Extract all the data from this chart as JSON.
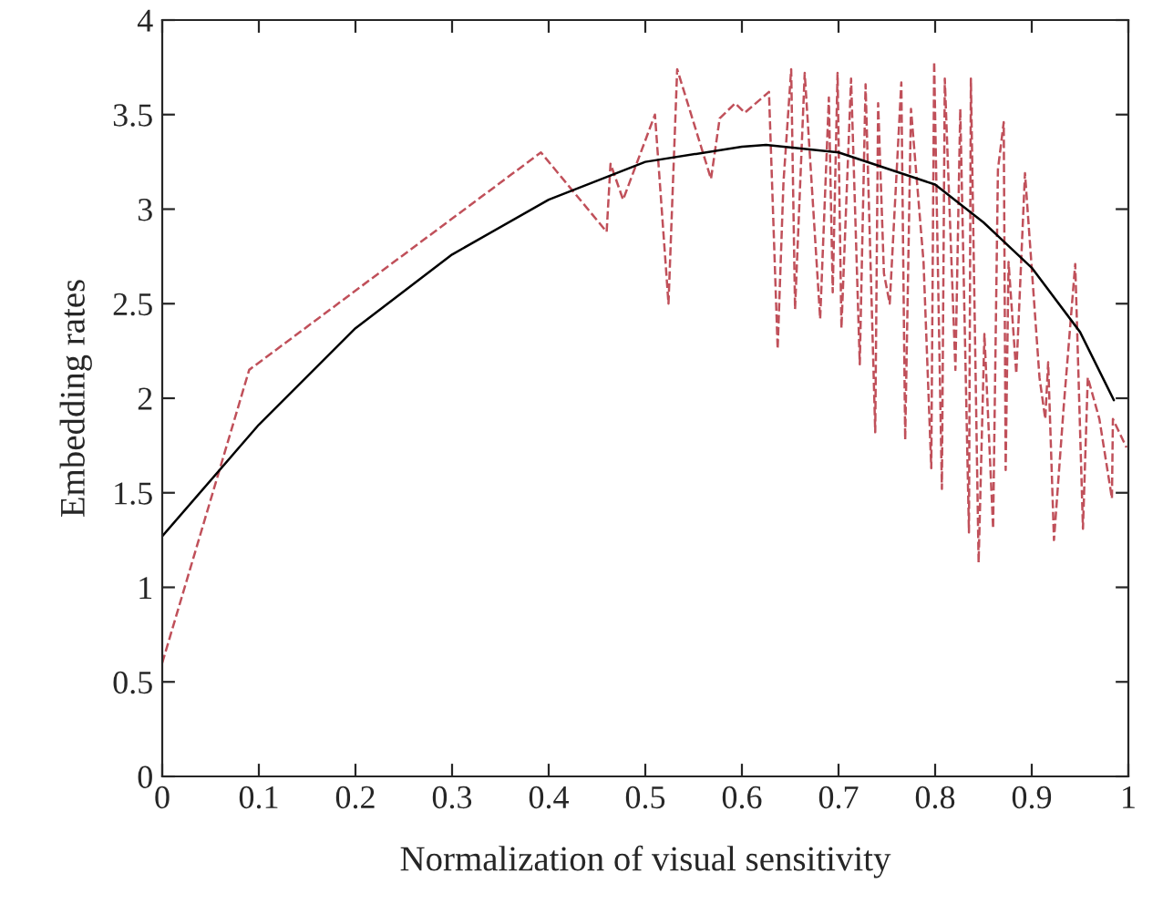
{
  "chart_data": {
    "type": "line",
    "xlabel": "Normalization of visual sensitivity",
    "ylabel": "Embedding rates",
    "xlim": [
      0,
      1
    ],
    "xticks": [
      0,
      0.1,
      0.2,
      0.3,
      0.4,
      0.5,
      0.6,
      0.7,
      0.8,
      0.9,
      1
    ],
    "ylim": [
      0,
      4
    ],
    "yticks": [
      0,
      0.5,
      1,
      1.5,
      2,
      2.5,
      3,
      3.5,
      4
    ],
    "grid": false,
    "marker": "none",
    "series": [
      {
        "color": "#c0505a",
        "line_style": "dashed",
        "x": [
          0,
          0.09,
          0.392,
          0.46,
          0.464,
          0.477,
          0.51,
          0.524,
          0.533,
          0.568,
          0.577,
          0.593,
          0.603,
          0.628,
          0.637,
          0.643,
          0.651,
          0.655,
          0.665,
          0.681,
          0.69,
          0.694,
          0.699,
          0.703,
          0.713,
          0.722,
          0.728,
          0.738,
          0.741,
          0.747,
          0.753,
          0.765,
          0.769,
          0.775,
          0.788,
          0.796,
          0.799,
          0.807,
          0.81,
          0.821,
          0.826,
          0.835,
          0.837,
          0.845,
          0.851,
          0.86,
          0.865,
          0.871,
          0.873,
          0.876,
          0.884,
          0.893,
          0.908,
          0.914,
          0.917,
          0.923,
          0.933,
          0.945,
          0.953,
          0.958,
          0.97,
          0.983,
          0.984,
          0.998
        ],
        "values": [
          0.6,
          2.15,
          3.3,
          2.88,
          3.24,
          3.05,
          3.5,
          2.5,
          3.74,
          3.16,
          3.48,
          3.56,
          3.51,
          3.62,
          2.26,
          3.14,
          3.74,
          2.47,
          3.72,
          2.42,
          3.59,
          2.56,
          3.72,
          2.37,
          3.69,
          2.18,
          3.66,
          1.82,
          3.56,
          2.66,
          2.5,
          3.67,
          1.78,
          3.53,
          2.72,
          1.63,
          3.78,
          1.52,
          3.69,
          2.15,
          3.53,
          1.29,
          3.69,
          1.13,
          2.34,
          1.31,
          3.21,
          3.46,
          1.62,
          2.72,
          2.13,
          3.19,
          2.11,
          1.89,
          2.19,
          1.25,
          1.95,
          2.71,
          1.31,
          2.11,
          1.89,
          1.47,
          1.89,
          1.74
        ]
      },
      {
        "color": "#000000",
        "line_style": "solid",
        "x": [
          0,
          0.1,
          0.2,
          0.3,
          0.4,
          0.5,
          0.6,
          0.625,
          0.7,
          0.8,
          0.85,
          0.9,
          0.95,
          0.985
        ],
        "values": [
          1.27,
          1.86,
          2.37,
          2.76,
          3.05,
          3.25,
          3.33,
          3.34,
          3.3,
          3.13,
          2.93,
          2.69,
          2.35,
          1.99
        ]
      }
    ]
  }
}
